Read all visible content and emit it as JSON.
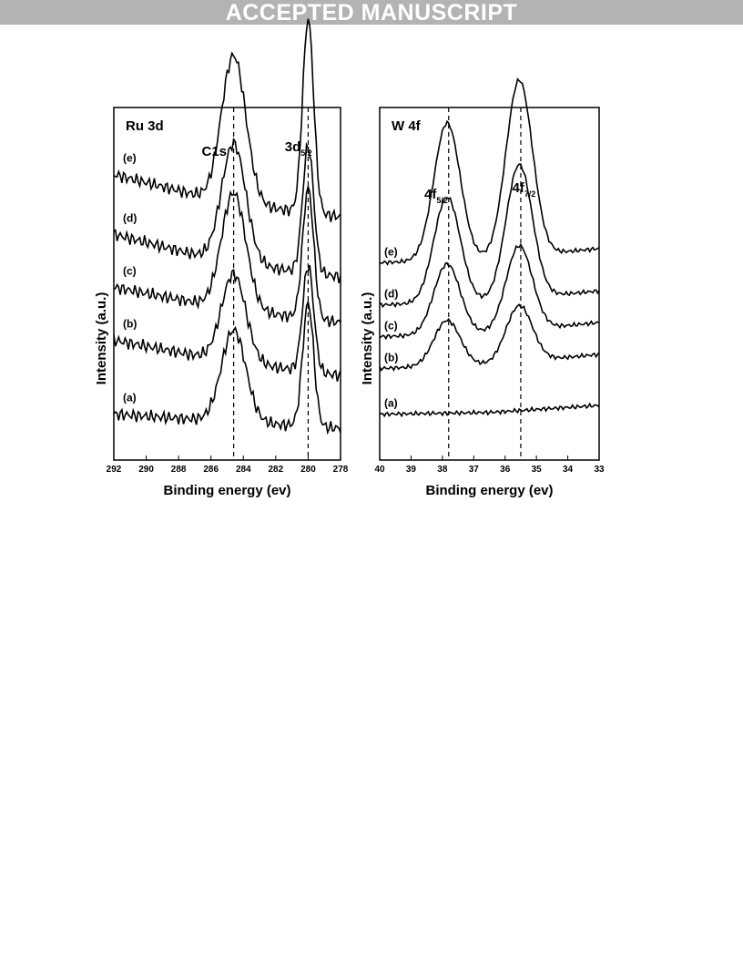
{
  "banner": "ACCEPTED MANUSCRIPT",
  "chart_data": [
    {
      "type": "line",
      "title": "Ru 3d",
      "xlabel": "Binding energy (ev)",
      "ylabel": "Intensity (a.u.)",
      "xlim": [
        292,
        278
      ],
      "xticks": [
        292,
        290,
        288,
        286,
        284,
        282,
        280,
        278
      ],
      "x_reversed": true,
      "yticks_shown": false,
      "reference_lines": [
        284.6,
        280.0
      ],
      "peak_labels": [
        {
          "main": "C1s",
          "sub": "",
          "x": 285.8
        },
        {
          "main": "3d",
          "sub": "5/2",
          "x": 280.6
        }
      ],
      "peaks": [
        {
          "center": 284.6,
          "width": 0.75,
          "series_heights": [
            0.26,
            0.25,
            0.33,
            0.34,
            0.42
          ]
        },
        {
          "center": 280.0,
          "width": 0.34,
          "series_heights": [
            0.35,
            0.3,
            0.37,
            0.36,
            0.55
          ]
        }
      ],
      "series": [
        {
          "name": "(a)",
          "baseline": [
            0.13,
            0.11,
            0.09
          ]
        },
        {
          "name": "(b)",
          "baseline": [
            0.34,
            0.28,
            0.24
          ]
        },
        {
          "name": "(c)",
          "baseline": [
            0.49,
            0.43,
            0.39
          ]
        },
        {
          "name": "(d)",
          "baseline": [
            0.64,
            0.56,
            0.52
          ]
        },
        {
          "name": "(e)",
          "baseline": [
            0.81,
            0.73,
            0.69
          ]
        }
      ]
    },
    {
      "type": "line",
      "title": "W 4f",
      "xlabel": "Binding energy (ev)",
      "ylabel": "Intensity (a.u.)",
      "xlim": [
        40,
        33
      ],
      "xticks": [
        40,
        39,
        38,
        37,
        36,
        35,
        34,
        33
      ],
      "x_reversed": true,
      "yticks_shown": false,
      "reference_lines": [
        37.8,
        35.5
      ],
      "peak_labels": [
        {
          "main": "4f",
          "sub": "5/2",
          "x": 38.2
        },
        {
          "main": "4f",
          "sub": "7/2",
          "x": 35.4
        }
      ],
      "peaks": [
        {
          "center": 37.85,
          "width": 0.42,
          "series_heights": [
            0.0,
            0.13,
            0.2,
            0.3,
            0.39
          ]
        },
        {
          "center": 35.55,
          "width": 0.42,
          "series_heights": [
            0.0,
            0.16,
            0.24,
            0.38,
            0.5
          ]
        }
      ],
      "series": [
        {
          "name": "(a)",
          "baseline": [
            0.13,
            0.135,
            0.155
          ]
        },
        {
          "name": "(b)",
          "baseline": [
            0.26,
            0.27,
            0.3
          ]
        },
        {
          "name": "(c)",
          "baseline": [
            0.35,
            0.36,
            0.39
          ]
        },
        {
          "name": "(d)",
          "baseline": [
            0.44,
            0.45,
            0.48
          ]
        },
        {
          "name": "(e)",
          "baseline": [
            0.56,
            0.57,
            0.6
          ]
        }
      ]
    }
  ]
}
